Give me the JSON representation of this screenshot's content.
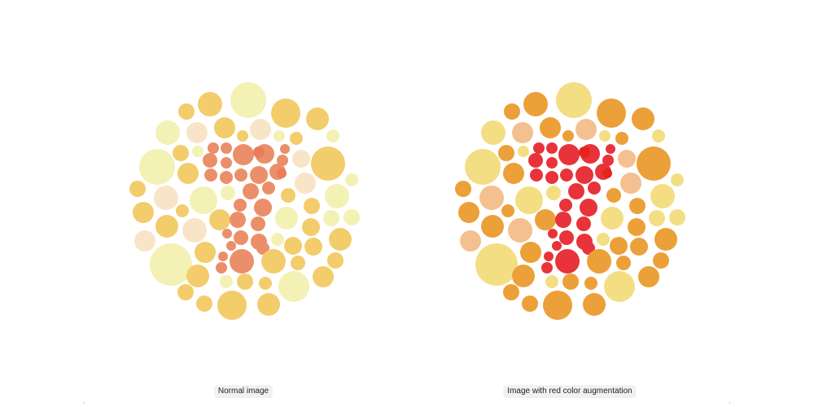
{
  "panels": [
    {
      "caption": "Normal image",
      "palette": {
        "pale": "#f3f1b4",
        "cream": "#f8e5c8",
        "yellow": "#f5e28a",
        "gold": "#f3cc6c",
        "salmon": "#ea8f6a",
        "coral": "#ea7c5a"
      }
    },
    {
      "caption": "Image with red color augmentation",
      "palette": {
        "pale": "#f3de84",
        "cream": "#f4c090",
        "yellow": "#f0d070",
        "gold": "#eca039",
        "salmon": "#e8333a",
        "coral": "#e5241e"
      }
    }
  ]
}
